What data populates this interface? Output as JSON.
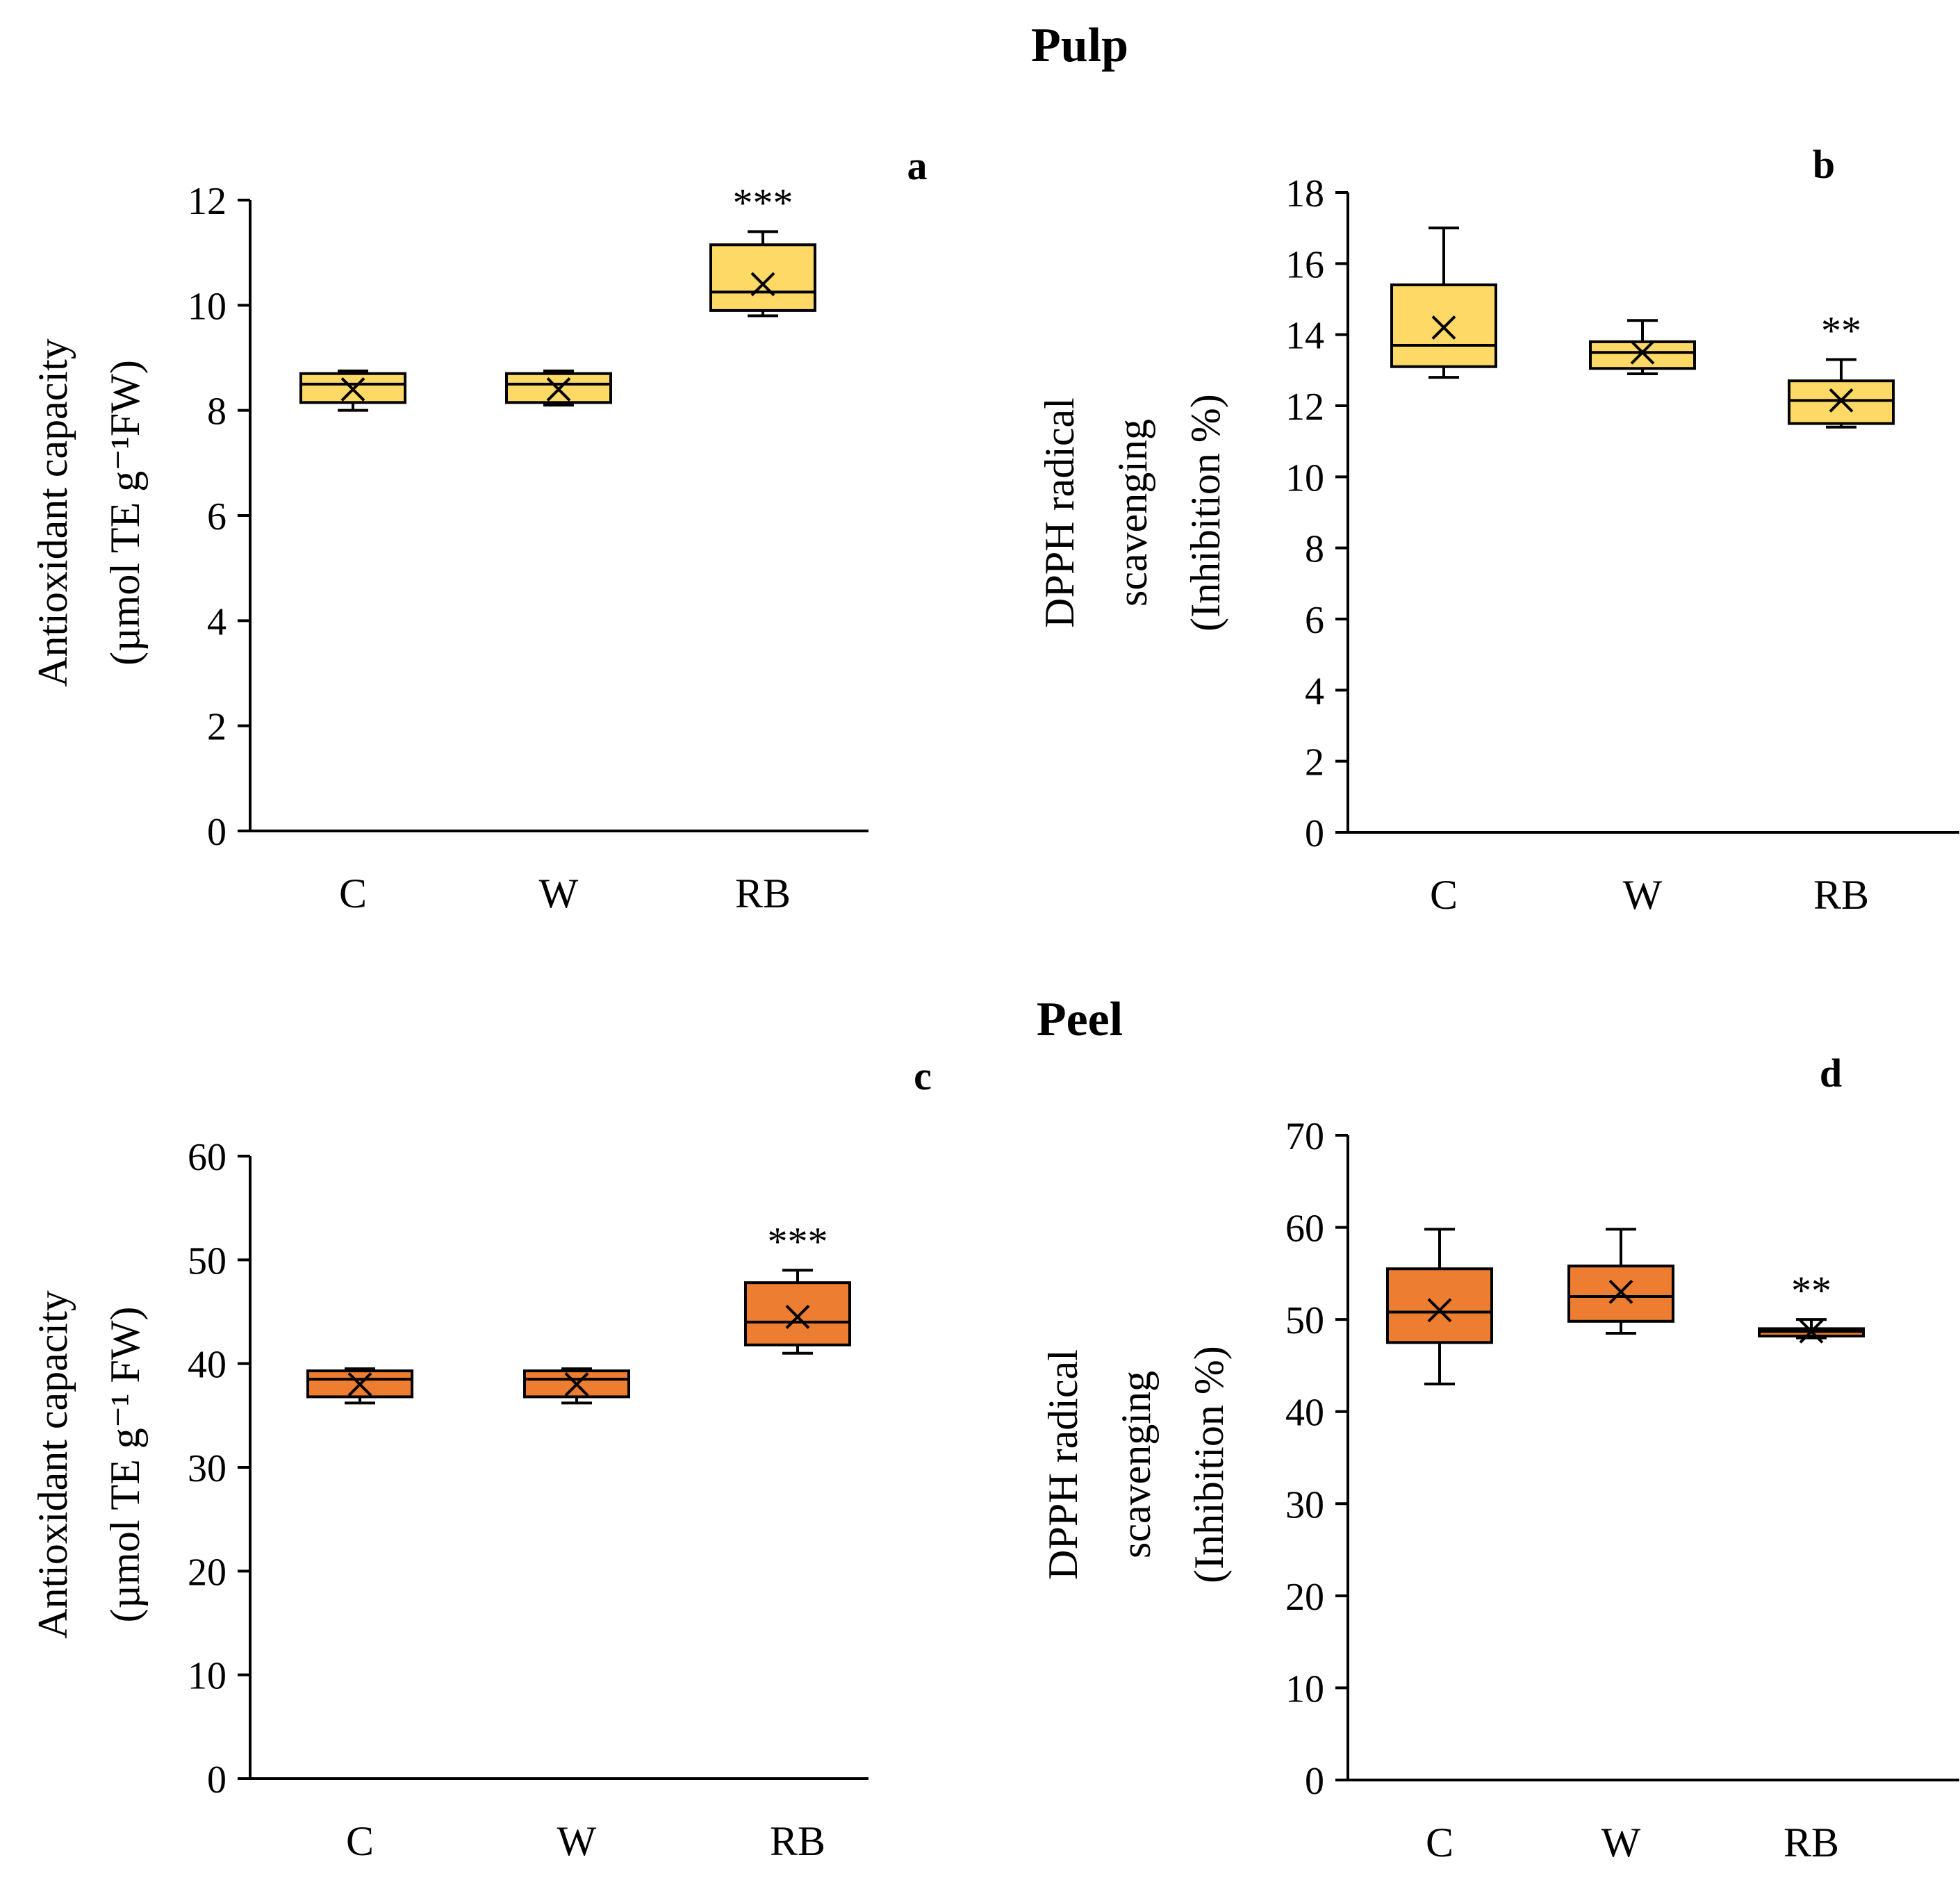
{
  "titles": {
    "pulp": "Pulp",
    "peel": "Peel"
  },
  "colors": {
    "pulp_fill": "#FFD966",
    "peel_fill": "#ED7D31",
    "stroke": "#000000"
  },
  "chart_data": [
    {
      "id": "a",
      "type": "box",
      "letter": "a",
      "section": "Pulp",
      "ylabel": [
        "Antioxidant capacity",
        "(µmol TE g⁻¹FW)"
      ],
      "ylim": [
        0,
        12
      ],
      "yticks": [
        0,
        2,
        4,
        6,
        8,
        10,
        12
      ],
      "categories": [
        "C",
        "W",
        "RB"
      ],
      "boxes": [
        {
          "min": 8.0,
          "q1": 8.15,
          "median": 8.5,
          "q3": 8.7,
          "max": 8.75,
          "mean": 8.4
        },
        {
          "min": 8.1,
          "q1": 8.15,
          "median": 8.5,
          "q3": 8.7,
          "max": 8.75,
          "mean": 8.4
        },
        {
          "min": 9.8,
          "q1": 9.9,
          "median": 10.25,
          "q3": 11.15,
          "max": 11.4,
          "mean": 10.4
        }
      ],
      "significance": [
        "",
        "",
        "***"
      ]
    },
    {
      "id": "b",
      "type": "box",
      "letter": "b",
      "section": "Pulp",
      "ylabel": [
        "DPPH radical",
        "scavenging",
        "(Inhibition %)"
      ],
      "ylim": [
        0,
        18
      ],
      "yticks": [
        0,
        2,
        4,
        6,
        8,
        10,
        12,
        14,
        16,
        18
      ],
      "categories": [
        "C",
        "W",
        "RB"
      ],
      "boxes": [
        {
          "min": 12.8,
          "q1": 13.1,
          "median": 13.7,
          "q3": 15.4,
          "max": 17.0,
          "mean": 14.2
        },
        {
          "min": 12.9,
          "q1": 13.05,
          "median": 13.5,
          "q3": 13.8,
          "max": 14.4,
          "mean": 13.5
        },
        {
          "min": 11.4,
          "q1": 11.5,
          "median": 12.15,
          "q3": 12.7,
          "max": 13.3,
          "mean": 12.15
        }
      ],
      "significance": [
        "",
        "",
        "**"
      ]
    },
    {
      "id": "c",
      "type": "box",
      "letter": "c",
      "section": "Peel",
      "ylabel": [
        "Antioxidant capacity",
        "(µmol TE g⁻¹ FW)"
      ],
      "ylim": [
        0,
        60
      ],
      "yticks": [
        0,
        10,
        20,
        30,
        40,
        50,
        60
      ],
      "categories": [
        "C",
        "W",
        "RB"
      ],
      "boxes": [
        {
          "min": 36.2,
          "q1": 36.8,
          "median": 38.5,
          "q3": 39.3,
          "max": 39.5,
          "mean": 38.0
        },
        {
          "min": 36.2,
          "q1": 36.8,
          "median": 38.5,
          "q3": 39.3,
          "max": 39.5,
          "mean": 38.0
        },
        {
          "min": 41.0,
          "q1": 41.8,
          "median": 44.0,
          "q3": 47.8,
          "max": 49.0,
          "mean": 44.5
        }
      ],
      "significance": [
        "",
        "",
        "***"
      ]
    },
    {
      "id": "d",
      "type": "box",
      "letter": "d",
      "section": "Peel",
      "ylabel": [
        "DPPH radical",
        "scavenging",
        "(Inhibition %)"
      ],
      "ylim": [
        0,
        70
      ],
      "yticks": [
        0,
        10,
        20,
        30,
        40,
        50,
        60,
        70
      ],
      "categories": [
        "C",
        "W",
        "RB"
      ],
      "boxes": [
        {
          "min": 43.0,
          "q1": 47.5,
          "median": 50.8,
          "q3": 55.5,
          "max": 59.8,
          "mean": 51.0
        },
        {
          "min": 48.5,
          "q1": 49.8,
          "median": 52.5,
          "q3": 55.8,
          "max": 59.8,
          "mean": 53.0
        },
        {
          "min": 48.0,
          "q1": 48.2,
          "median": 48.7,
          "q3": 49.0,
          "max": 50.0,
          "mean": 48.7
        }
      ],
      "significance": [
        "",
        "",
        "**"
      ]
    }
  ]
}
